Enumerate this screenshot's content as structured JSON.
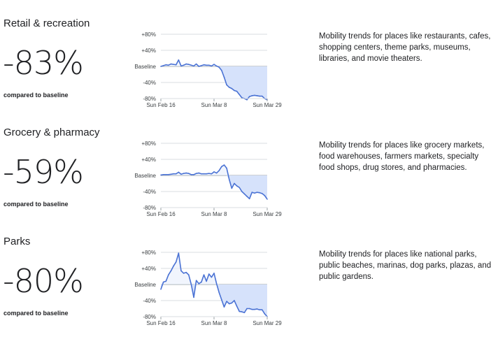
{
  "sections": [
    {
      "category": "Retail & recreation",
      "percent": "-83%",
      "compared": "compared to baseline",
      "description": "Mobility trends for places like restaurants, cafes, shopping centers, theme parks, museums, libraries, and movie theaters."
    },
    {
      "category": "Grocery & pharmacy",
      "percent": "-59%",
      "compared": "compared to baseline",
      "description": "Mobility trends for places like grocery markets, food warehouses, farmers markets, specialty food shops, drug stores, and pharmacies."
    },
    {
      "category": "Parks",
      "percent": "-80%",
      "compared": "compared to baseline",
      "description": "Mobility trends for places like national parks, public beaches, marinas, dog parks, plazas, and public gardens."
    }
  ],
  "chart_data": [
    {
      "type": "area",
      "x_ticks": [
        "Sun Feb 16",
        "Sun Mar 8",
        "Sun Mar 29"
      ],
      "y_ticks": [
        "+80%",
        "+40%",
        "Baseline",
        "-40%",
        "-80%"
      ],
      "ylim": [
        -80,
        80
      ],
      "x": [
        "Feb 16",
        "Feb 17",
        "Feb 18",
        "Feb 19",
        "Feb 20",
        "Feb 21",
        "Feb 22",
        "Feb 23",
        "Feb 24",
        "Feb 25",
        "Feb 26",
        "Feb 27",
        "Feb 28",
        "Feb 29",
        "Mar 1",
        "Mar 2",
        "Mar 3",
        "Mar 4",
        "Mar 5",
        "Mar 6",
        "Mar 7",
        "Mar 8",
        "Mar 9",
        "Mar 10",
        "Mar 11",
        "Mar 12",
        "Mar 13",
        "Mar 14",
        "Mar 15",
        "Mar 16",
        "Mar 17",
        "Mar 18",
        "Mar 19",
        "Mar 20",
        "Mar 21",
        "Mar 22",
        "Mar 23",
        "Mar 24",
        "Mar 25",
        "Mar 26",
        "Mar 27",
        "Mar 28",
        "Mar 29"
      ],
      "values": [
        0,
        2,
        4,
        3,
        6,
        5,
        4,
        16,
        1,
        3,
        6,
        5,
        3,
        1,
        6,
        0,
        2,
        4,
        3,
        3,
        1,
        5,
        1,
        -2,
        -10,
        -27,
        -46,
        -52,
        -55,
        -60,
        -62,
        -70,
        -78,
        -80,
        -83,
        -75,
        -73,
        -72,
        -73,
        -74,
        -74,
        -80,
        -83
      ],
      "line_color": "#4a72d4",
      "fill_color": "#d6e2fb"
    },
    {
      "type": "area",
      "x_ticks": [
        "Sun Feb 16",
        "Sun Mar 8",
        "Sun Mar 29"
      ],
      "y_ticks": [
        "+80%",
        "+40%",
        "Baseline",
        "-40%",
        "-80%"
      ],
      "ylim": [
        -80,
        80
      ],
      "x": [
        "Feb 16",
        "Feb 17",
        "Feb 18",
        "Feb 19",
        "Feb 20",
        "Feb 21",
        "Feb 22",
        "Feb 23",
        "Feb 24",
        "Feb 25",
        "Feb 26",
        "Feb 27",
        "Feb 28",
        "Feb 29",
        "Mar 1",
        "Mar 2",
        "Mar 3",
        "Mar 4",
        "Mar 5",
        "Mar 6",
        "Mar 7",
        "Mar 8",
        "Mar 9",
        "Mar 10",
        "Mar 11",
        "Mar 12",
        "Mar 13",
        "Mar 14",
        "Mar 15",
        "Mar 16",
        "Mar 17",
        "Mar 18",
        "Mar 19",
        "Mar 20",
        "Mar 21",
        "Mar 22",
        "Mar 23",
        "Mar 24",
        "Mar 25",
        "Mar 26",
        "Mar 27",
        "Mar 28",
        "Mar 29"
      ],
      "values": [
        1,
        2,
        2,
        2,
        3,
        4,
        4,
        8,
        3,
        5,
        6,
        5,
        2,
        2,
        5,
        6,
        4,
        4,
        4,
        5,
        4,
        9,
        6,
        12,
        22,
        26,
        18,
        -10,
        -32,
        -20,
        -26,
        -30,
        -40,
        -46,
        -52,
        -58,
        -42,
        -44,
        -42,
        -43,
        -45,
        -50,
        -59
      ],
      "line_color": "#4a72d4",
      "fill_color": "#d6e2fb"
    },
    {
      "type": "area",
      "x_ticks": [
        "Sun Feb 16",
        "Sun Mar 8",
        "Sun Mar 29"
      ],
      "y_ticks": [
        "+80%",
        "+40%",
        "Baseline",
        "-40%",
        "-80%"
      ],
      "ylim": [
        -80,
        80
      ],
      "x": [
        "Feb 16",
        "Feb 17",
        "Feb 18",
        "Feb 19",
        "Feb 20",
        "Feb 21",
        "Feb 22",
        "Feb 23",
        "Feb 24",
        "Feb 25",
        "Feb 26",
        "Feb 27",
        "Feb 28",
        "Feb 29",
        "Mar 1",
        "Mar 2",
        "Mar 3",
        "Mar 4",
        "Mar 5",
        "Mar 6",
        "Mar 7",
        "Mar 8",
        "Mar 9",
        "Mar 10",
        "Mar 11",
        "Mar 12",
        "Mar 13",
        "Mar 14",
        "Mar 15",
        "Mar 16",
        "Mar 17",
        "Mar 18",
        "Mar 19",
        "Mar 20",
        "Mar 21",
        "Mar 22",
        "Mar 23",
        "Mar 24",
        "Mar 25",
        "Mar 26",
        "Mar 27",
        "Mar 28",
        "Mar 29"
      ],
      "values": [
        -12,
        6,
        8,
        24,
        34,
        46,
        56,
        78,
        34,
        28,
        30,
        24,
        0,
        -32,
        10,
        2,
        6,
        24,
        8,
        26,
        18,
        28,
        2,
        -20,
        -38,
        -56,
        -42,
        -48,
        -46,
        -40,
        -54,
        -67,
        -68,
        -70,
        -60,
        -60,
        -62,
        -62,
        -61,
        -63,
        -63,
        -73,
        -80
      ],
      "line_color": "#4a72d4",
      "fill_color": "#d6e2fb"
    }
  ]
}
